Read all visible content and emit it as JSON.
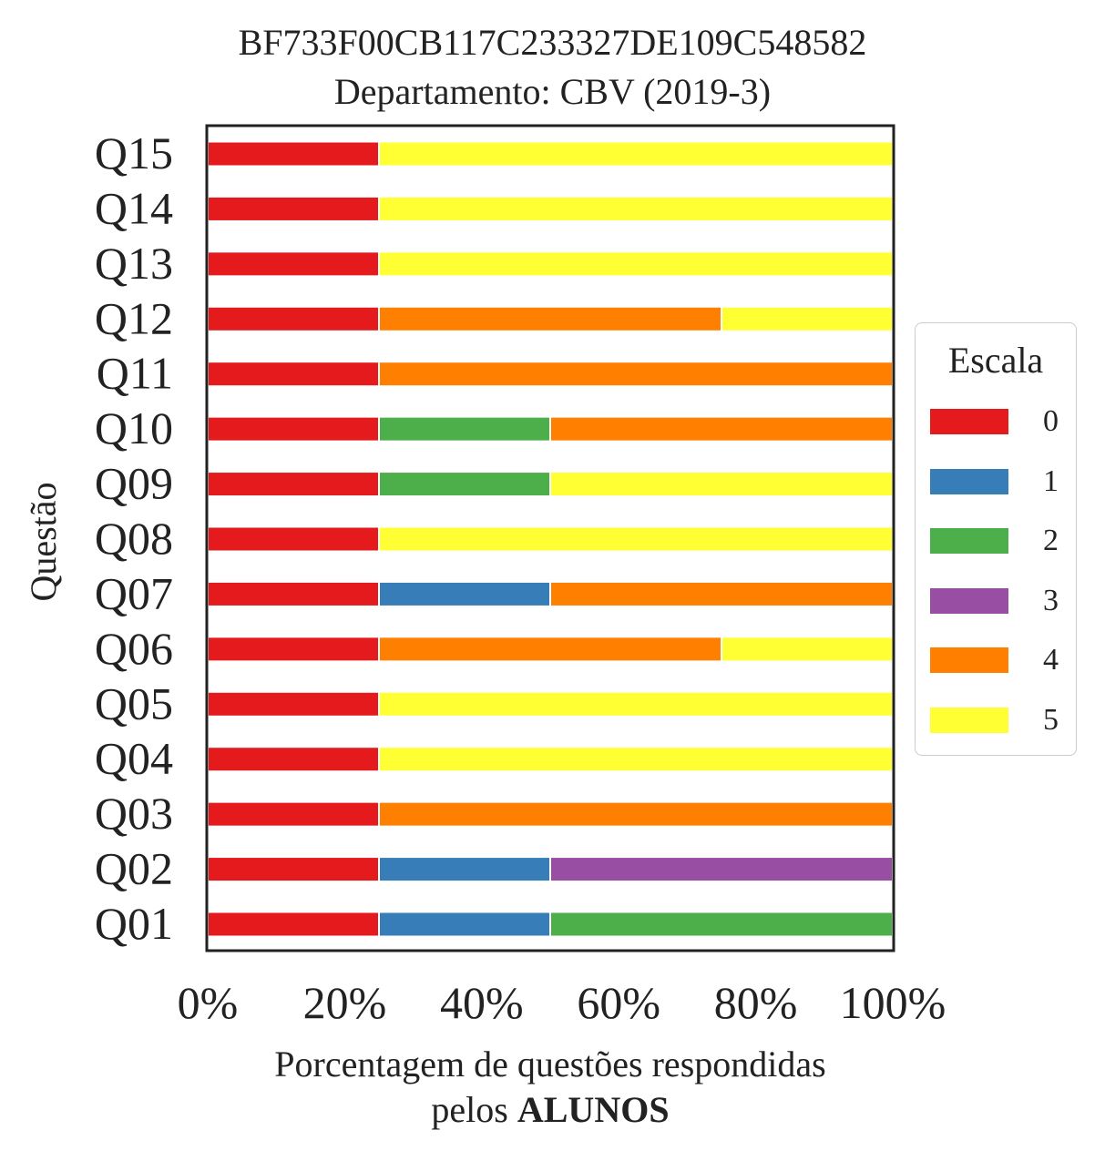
{
  "title": {
    "line1": "BF733F00CB117C233327DE109C548582",
    "line2": "Departamento: CBV (2019-3)"
  },
  "chart_data": {
    "type": "bar",
    "orientation": "horizontal",
    "stacked": true,
    "categories": [
      "Q01",
      "Q02",
      "Q03",
      "Q04",
      "Q05",
      "Q06",
      "Q07",
      "Q08",
      "Q09",
      "Q10",
      "Q11",
      "Q12",
      "Q13",
      "Q14",
      "Q15"
    ],
    "series": [
      {
        "name": "0",
        "color": "#e41a1c",
        "values": [
          25,
          25,
          25,
          25,
          25,
          25,
          25,
          25,
          25,
          25,
          25,
          25,
          25,
          25,
          25
        ]
      },
      {
        "name": "1",
        "color": "#377eb8",
        "values": [
          25,
          25,
          0,
          0,
          0,
          0,
          25,
          0,
          0,
          0,
          0,
          0,
          0,
          0,
          0
        ]
      },
      {
        "name": "2",
        "color": "#4daf4a",
        "values": [
          50,
          0,
          0,
          0,
          0,
          0,
          0,
          0,
          25,
          25,
          0,
          0,
          0,
          0,
          0
        ]
      },
      {
        "name": "3",
        "color": "#984ea3",
        "values": [
          0,
          50,
          0,
          0,
          0,
          0,
          0,
          0,
          0,
          0,
          0,
          0,
          0,
          0,
          0
        ]
      },
      {
        "name": "4",
        "color": "#ff7f00",
        "values": [
          0,
          0,
          75,
          0,
          0,
          50,
          50,
          0,
          0,
          50,
          75,
          50,
          0,
          0,
          0
        ]
      },
      {
        "name": "5",
        "color": "#ffff33",
        "values": [
          0,
          0,
          0,
          75,
          75,
          25,
          0,
          75,
          50,
          0,
          0,
          25,
          75,
          75,
          75
        ]
      }
    ],
    "xlim": [
      0,
      100
    ],
    "xticks": [
      "0%",
      "20%",
      "40%",
      "60%",
      "80%",
      "100%"
    ],
    "ylabel": "Questão",
    "xlabel_line1": "Porcentagem de questões respondidas",
    "xlabel_line2_prefix": "pelos ",
    "xlabel_line2_bold": "ALUNOS",
    "legend": {
      "title": "Escala",
      "placement": "right"
    },
    "grid": false
  }
}
